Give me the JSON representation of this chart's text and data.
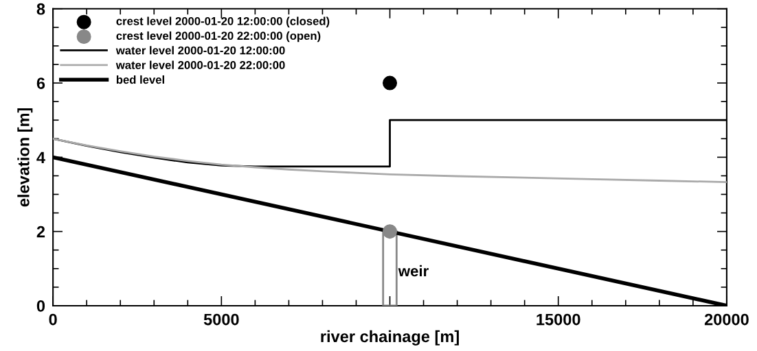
{
  "chart_data": {
    "type": "line",
    "xlabel": "river chainage [m]",
    "ylabel": "elevation [m]",
    "xlim": [
      0,
      20000
    ],
    "xticks": [
      0,
      5000,
      {
        "value": 10000,
        "label": null
      },
      15000,
      20000
    ],
    "ylim": [
      0,
      8
    ],
    "yticks": [
      0,
      2,
      4,
      6,
      8
    ],
    "grid": false,
    "legend": "top left",
    "series": [
      {
        "name": "crest level 2000-01-20 12:00:00 (closed)",
        "type": "scatter",
        "marker": "circle",
        "color": "#000000",
        "x": [
          10000
        ],
        "values": [
          6
        ]
      },
      {
        "name": "crest level 2000-01-20 22:00:00 (open)",
        "type": "scatter",
        "marker": "circle",
        "color": "#888888",
        "x": [
          10000
        ],
        "values": [
          2
        ]
      },
      {
        "name": "water level 2000-01-20 12:00:00",
        "line_style": "solid",
        "color": "#000000",
        "x": [
          0,
          1000,
          2000,
          3000,
          4000,
          5000,
          6000,
          7000,
          10000,
          10000,
          20000
        ],
        "values": [
          4.5,
          4.31,
          4.14,
          3.99,
          3.86,
          3.78,
          3.75,
          3.75,
          3.75,
          5.0,
          5.0
        ]
      },
      {
        "name": "water level 2000-01-20 22:00:00",
        "line_style": "solid",
        "color": "#aaaaaa",
        "x": [
          0,
          1000,
          2000,
          3000,
          4000,
          5000,
          6000,
          7000,
          8000,
          9000,
          10000,
          12000,
          14000,
          16000,
          18000,
          20000
        ],
        "values": [
          4.5,
          4.32,
          4.16,
          4.02,
          3.9,
          3.8,
          3.73,
          3.67,
          3.62,
          3.58,
          3.54,
          3.49,
          3.45,
          3.41,
          3.37,
          3.33
        ]
      },
      {
        "name": "bed level",
        "line_style": "solid",
        "color": "#000000",
        "x": [
          0,
          20000
        ],
        "values": [
          4,
          0
        ]
      },
      {
        "type": "bar",
        "color": "#888888",
        "x": [
          10000
        ],
        "values": [
          2
        ]
      }
    ],
    "annotations": [
      "weir"
    ]
  }
}
